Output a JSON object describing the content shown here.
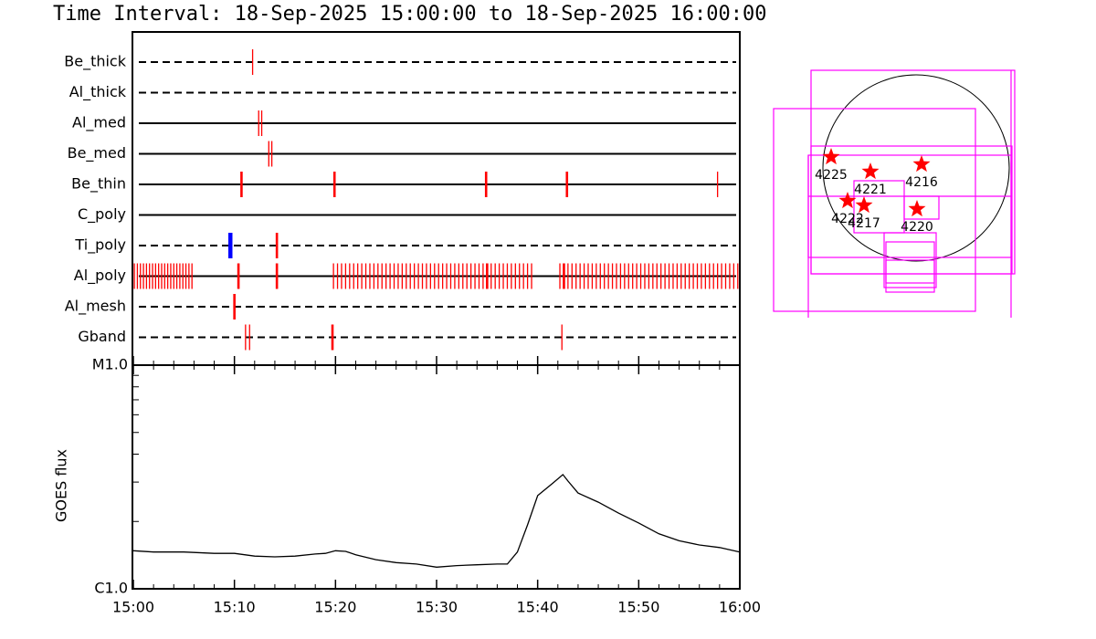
{
  "chart_data": [
    {
      "type": "timeline",
      "title": "Time Interval: 18-Sep-2025 15:00:00 to 18-Sep-2025 16:00:00",
      "xlim": [
        0,
        60
      ],
      "xticks": [
        0,
        10,
        20,
        30,
        40,
        50,
        60
      ],
      "rows": [
        {
          "name": "Be_thick",
          "line": "dashed",
          "events": [
            {
              "color": "#ff0000",
              "weight": "thin",
              "values": [
                11.8
              ]
            }
          ]
        },
        {
          "name": "Al_thick",
          "line": "dashed",
          "events": []
        },
        {
          "name": "Al_med",
          "line": "solid",
          "events": [
            {
              "color": "#ff0000",
              "weight": "thin",
              "values": [
                12.4,
                12.7
              ]
            }
          ]
        },
        {
          "name": "Be_med",
          "line": "solid",
          "events": [
            {
              "color": "#ff0000",
              "weight": "thin",
              "values": [
                13.4,
                13.7
              ]
            }
          ]
        },
        {
          "name": "Be_thin",
          "line": "solid",
          "events": [
            {
              "color": "#ff0000",
              "weight": "thick",
              "values": [
                10.7,
                19.9,
                34.9,
                42.9
              ]
            },
            {
              "color": "#ff0000",
              "weight": "thin",
              "values": [
                57.8
              ]
            }
          ]
        },
        {
          "name": "C_poly",
          "line": "solid",
          "events": []
        },
        {
          "name": "Ti_poly",
          "line": "dashed",
          "events": [
            {
              "color": "#0000ff",
              "weight": "heavy",
              "values": [
                9.6
              ]
            },
            {
              "color": "#ff0000",
              "weight": "thick",
              "values": [
                14.2
              ]
            }
          ]
        },
        {
          "name": "Al_poly",
          "line": "solid",
          "events": [
            {
              "color": "#ff0000",
              "weight": "thick",
              "values": [
                10.4,
                14.2,
                35.0,
                42.6
              ]
            },
            {
              "color": "#ff0000",
              "weight": "thin",
              "values": [
                0.1,
                0.4,
                0.7,
                1.0,
                1.3,
                1.6,
                1.9,
                2.2,
                2.5,
                2.8,
                3.1,
                3.4,
                3.7,
                4.0,
                4.3,
                4.6,
                4.9,
                5.2,
                5.5,
                5.8,
                19.8,
                20.2,
                20.6,
                21.0,
                21.4,
                21.8,
                22.2,
                22.6,
                23.0,
                23.4,
                23.8,
                24.2,
                24.6,
                25.0,
                25.4,
                25.8,
                26.2,
                26.6,
                27.0,
                27.4,
                27.8,
                28.2,
                28.6,
                29.0,
                29.4,
                29.8,
                30.2,
                30.6,
                31.0,
                31.4,
                31.8,
                32.2,
                32.6,
                33.0,
                33.4,
                33.8,
                34.2,
                34.6,
                35.4,
                35.8,
                36.2,
                36.6,
                37.0,
                37.4,
                37.8,
                38.2,
                38.6,
                39.0,
                39.4,
                42.2,
                43.0,
                43.4,
                43.8,
                44.2,
                44.6,
                45.0,
                45.4,
                45.8,
                46.2,
                46.6,
                47.0,
                47.4,
                47.8,
                48.2,
                48.6,
                49.0,
                49.4,
                49.8,
                50.2,
                50.6,
                51.0,
                51.4,
                51.8,
                52.2,
                52.6,
                53.0,
                53.4,
                53.8,
                54.2,
                54.6,
                55.0,
                55.4,
                55.8,
                56.2,
                56.6,
                57.0,
                57.4,
                57.8,
                58.2,
                58.6,
                59.0,
                59.4,
                59.8
              ]
            }
          ]
        },
        {
          "name": "Al_mesh",
          "line": "dashed",
          "events": [
            {
              "color": "#ff0000",
              "weight": "thick",
              "values": [
                10.0
              ]
            }
          ]
        },
        {
          "name": "Gband",
          "line": "dashed",
          "events": [
            {
              "color": "#ff0000",
              "weight": "thin",
              "values": [
                11.1,
                11.5,
                42.4
              ]
            },
            {
              "color": "#ff0000",
              "weight": "thick",
              "values": [
                19.7
              ]
            }
          ]
        }
      ]
    },
    {
      "type": "line",
      "y_label": "GOES flux",
      "yscale": "log",
      "color": "#000000",
      "xlim": [
        0,
        60
      ],
      "xticks": [
        {
          "value": 0,
          "label": "15:00"
        },
        {
          "value": 10,
          "label": "15:10"
        },
        {
          "value": 20,
          "label": "15:20"
        },
        {
          "value": 30,
          "label": "15:30"
        },
        {
          "value": 40,
          "label": "15:40"
        },
        {
          "value": 50,
          "label": "15:50"
        },
        {
          "value": 60,
          "label": "16:00"
        }
      ],
      "ylim": [
        1e-06,
        1e-05
      ],
      "yticks": [
        {
          "value": 1e-06,
          "label": "C1.0"
        },
        {
          "value": 1e-05,
          "label": "M1.0"
        }
      ],
      "x": [
        0,
        2,
        5,
        8,
        10,
        12,
        14,
        16,
        18,
        19,
        20,
        21,
        22,
        24,
        26,
        28,
        30,
        32,
        34,
        36,
        37,
        38,
        39,
        40,
        41.5,
        42.5,
        43,
        44,
        46,
        48,
        50,
        52,
        54,
        56,
        58,
        60
      ],
      "values": [
        1.48e-06,
        1.46e-06,
        1.46e-06,
        1.44e-06,
        1.44e-06,
        1.4e-06,
        1.39e-06,
        1.4e-06,
        1.43e-06,
        1.44e-06,
        1.48e-06,
        1.47e-06,
        1.42e-06,
        1.35e-06,
        1.31e-06,
        1.29e-06,
        1.25e-06,
        1.27e-06,
        1.28e-06,
        1.29e-06,
        1.29e-06,
        1.46e-06,
        1.93e-06,
        2.61e-06,
        2.97e-06,
        3.24e-06,
        3.03e-06,
        2.68e-06,
        2.44e-06,
        2.18e-06,
        1.97e-06,
        1.76e-06,
        1.64e-06,
        1.57e-06,
        1.53e-06,
        1.46e-06
      ]
    }
  ],
  "regions": [
    "4225",
    "4221",
    "4216",
    "4222",
    "4217",
    "4220"
  ]
}
